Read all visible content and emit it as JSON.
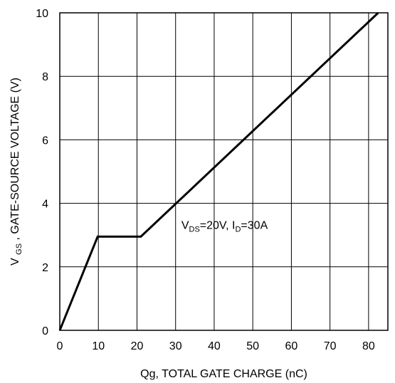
{
  "chart_data": {
    "type": "line",
    "xlabel": "Qg, TOTAL GATE CHARGE (nC)",
    "ylabel": {
      "prefix": "V",
      "subscript": "GS",
      "rest": ", GATE-SOURCE VOLTAGE (V)"
    },
    "xlim": [
      0,
      85
    ],
    "ylim": [
      0,
      10
    ],
    "x_ticks": [
      0,
      10,
      20,
      30,
      40,
      50,
      60,
      70,
      80
    ],
    "y_ticks": [
      0,
      2,
      4,
      6,
      8,
      10
    ],
    "grid": true,
    "series": [
      {
        "points": [
          {
            "x": 0,
            "y": 0
          },
          {
            "x": 9.8,
            "y": 2.95
          },
          {
            "x": 21,
            "y": 2.95
          },
          {
            "x": 82.5,
            "y": 10
          }
        ],
        "color": "#000000"
      }
    ],
    "annotation": {
      "parts": [
        {
          "text": "V",
          "sub": false
        },
        {
          "text": "DS",
          "sub": true
        },
        {
          "text": "=20V, I",
          "sub": false
        },
        {
          "text": "D",
          "sub": true
        },
        {
          "text": "=30A",
          "sub": false
        }
      ],
      "anchor": {
        "x": 31.5,
        "y": 3.2
      }
    }
  }
}
